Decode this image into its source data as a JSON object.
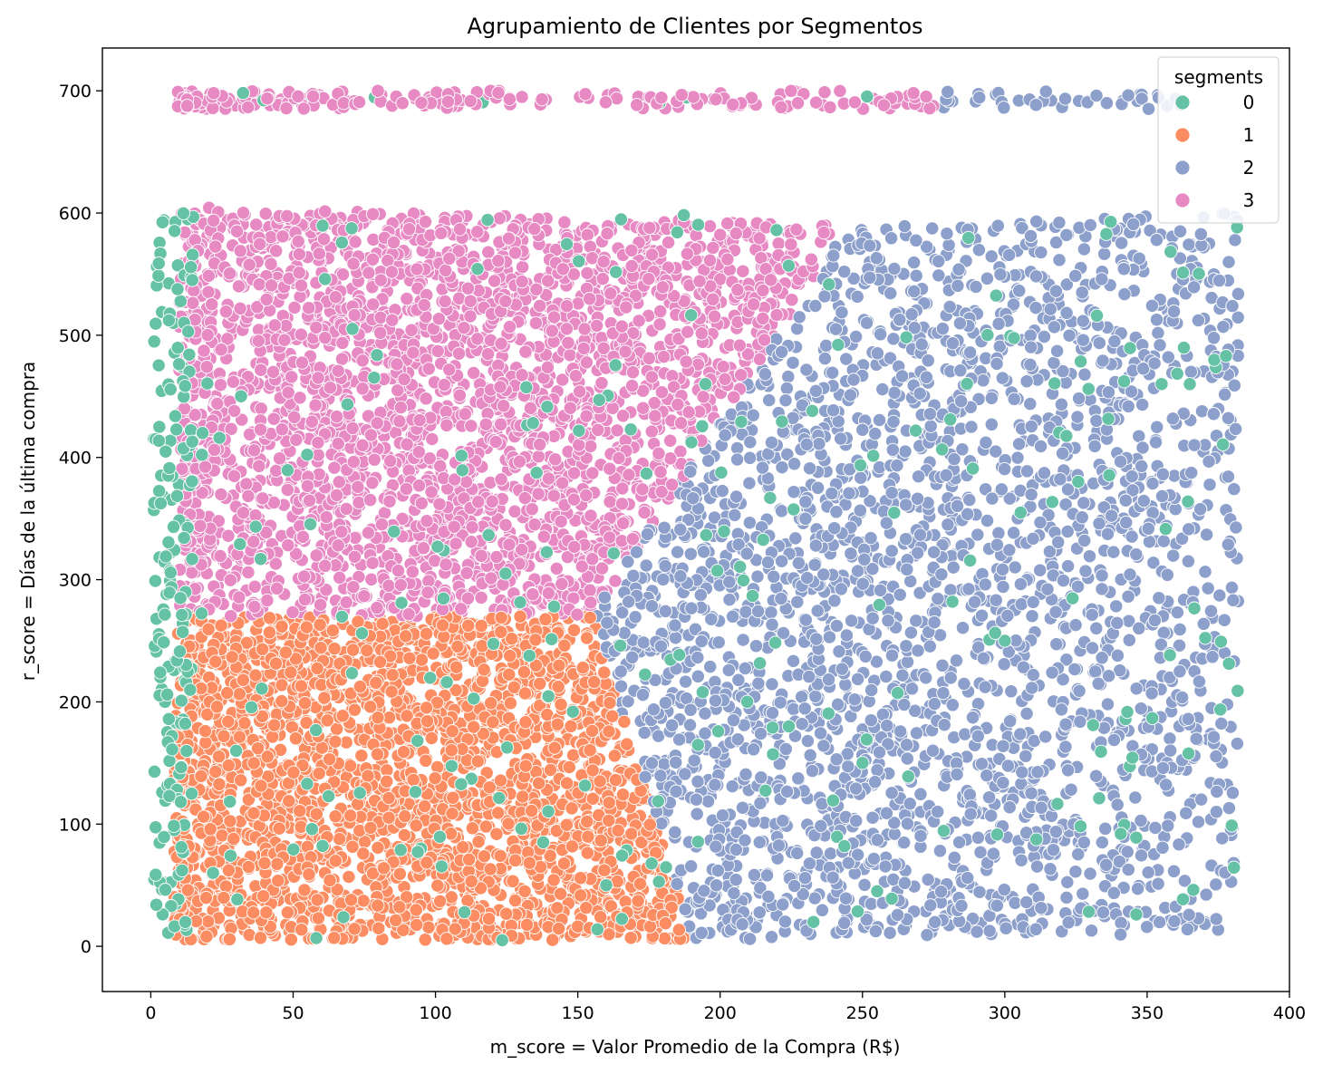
{
  "chart_data": {
    "type": "scatter",
    "title": "Agrupamiento de Clientes por Segmentos",
    "xlabel": "m_score = Valor Promedio de la Compra (R$)",
    "ylabel": "r_score = Días de la última compra",
    "xlim": [
      -17,
      400
    ],
    "ylim": [
      -37,
      735
    ],
    "x_ticks": [
      0,
      50,
      100,
      150,
      200,
      250,
      300,
      350,
      400
    ],
    "y_ticks": [
      0,
      100,
      200,
      300,
      400,
      500,
      600,
      700
    ],
    "grid": false,
    "legend": {
      "title": "segments",
      "placement": "top-right",
      "entries": [
        "0",
        "1",
        "2",
        "3"
      ]
    },
    "series": [
      {
        "name": "0",
        "color": "#66c2a5"
      },
      {
        "name": "1",
        "color": "#fc8d62"
      },
      {
        "name": "2",
        "color": "#8da0cb"
      },
      {
        "name": "3",
        "color": "#e78ac3"
      }
    ],
    "regions": [
      {
        "segment": "1",
        "approx_polygon": [
          [
            8,
            5
          ],
          [
            8,
            270
          ],
          [
            155,
            270
          ],
          [
            190,
            5
          ]
        ]
      },
      {
        "segment": "3",
        "approx_polygon": [
          [
            10,
            270
          ],
          [
            10,
            605
          ],
          [
            245,
            590
          ],
          [
            155,
            270
          ]
        ]
      },
      {
        "segment": "2",
        "approx_polygon": [
          [
            155,
            270
          ],
          [
            245,
            590
          ],
          [
            382,
            600
          ],
          [
            382,
            10
          ],
          [
            190,
            5
          ]
        ]
      },
      {
        "segment": "0",
        "description_points": [
          [
            3,
            425
          ],
          [
            2,
            268
          ],
          [
            5,
            200
          ],
          [
            5,
            52
          ],
          [
            13,
            595
          ],
          [
            8,
            510
          ],
          [
            30,
            160
          ],
          [
            160,
            50
          ],
          [
            250,
            150
          ],
          [
            300,
            250
          ],
          [
            365,
            460
          ]
        ]
      }
    ],
    "top_band": {
      "y_range": [
        685,
        700
      ],
      "x_range": [
        9,
        365
      ],
      "segment_before_x300": "3",
      "segment_after_x300": "2"
    }
  }
}
